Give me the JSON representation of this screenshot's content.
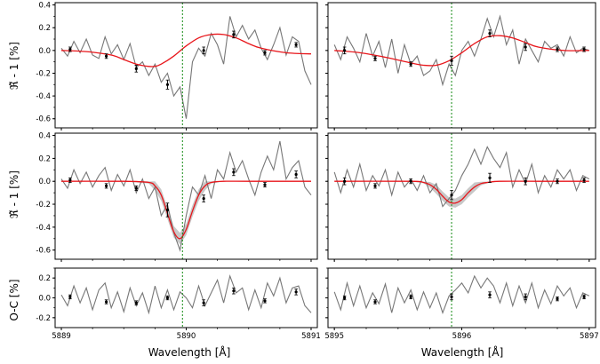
{
  "figure": {
    "ylabel_top": "ℜ̃ - 1 [%]",
    "ylabel_mid": "ℜ̃ - 1 [%]",
    "ylabel_bottom": "O-C [%]",
    "xlabel_left": "Wavelength [Å]",
    "xlabel_right": "Wavelength [Å]"
  },
  "colors": {
    "raw": "#777777",
    "model": "#e8161b",
    "band": "#b5b5b5",
    "line_center": "#128a12",
    "points": "#000000"
  },
  "chart_data": [
    {
      "id": "top-left",
      "type": "line",
      "xlim": [
        5888.95,
        5891.05
      ],
      "ylim": [
        -0.68,
        0.42
      ],
      "xticks": [
        5889,
        5890,
        5891
      ],
      "show_xtick_labels": false,
      "yticks": [
        0.4,
        0.2,
        0.0,
        -0.2,
        -0.4,
        -0.6
      ],
      "ytick_labels": [
        "0.4",
        "0.2",
        "0.0",
        "-0.2",
        "-0.4",
        "-0.6"
      ],
      "line_center": 5889.97,
      "raw_spectrum": {
        "x": [
          5889.0,
          5889.05,
          5889.1,
          5889.15,
          5889.2,
          5889.25,
          5889.3,
          5889.35,
          5889.4,
          5889.45,
          5889.5,
          5889.55,
          5889.6,
          5889.65,
          5889.7,
          5889.75,
          5889.8,
          5889.85,
          5889.9,
          5889.95,
          5890.0,
          5890.05,
          5890.1,
          5890.15,
          5890.2,
          5890.25,
          5890.3,
          5890.35,
          5890.4,
          5890.45,
          5890.5,
          5890.55,
          5890.6,
          5890.65,
          5890.7,
          5890.75,
          5890.8,
          5890.85,
          5890.9,
          5890.95,
          5891.0
        ],
        "y": [
          0.02,
          -0.05,
          0.08,
          -0.02,
          0.1,
          -0.04,
          -0.07,
          0.12,
          -0.03,
          0.05,
          -0.08,
          0.06,
          -0.15,
          -0.1,
          -0.22,
          -0.12,
          -0.28,
          -0.2,
          -0.4,
          -0.32,
          -0.6,
          -0.1,
          0.02,
          -0.05,
          0.15,
          0.05,
          -0.12,
          0.3,
          0.12,
          0.22,
          0.1,
          0.18,
          0.02,
          -0.08,
          0.05,
          0.2,
          -0.04,
          0.12,
          0.08,
          -0.18,
          -0.3
        ]
      },
      "binned_points": {
        "x": [
          5889.07,
          5889.36,
          5889.6,
          5889.85,
          5890.14,
          5890.38,
          5890.63,
          5890.88
        ],
        "y": [
          0.01,
          -0.05,
          -0.16,
          -0.3,
          0.0,
          0.14,
          -0.02,
          0.05
        ],
        "yerr": [
          0.02,
          0.02,
          0.03,
          0.04,
          0.03,
          0.03,
          0.02,
          0.02
        ]
      },
      "model": {
        "x": [
          5889.0,
          5889.2,
          5889.4,
          5889.5,
          5889.6,
          5889.7,
          5889.75,
          5889.8,
          5889.9,
          5890.0,
          5890.1,
          5890.2,
          5890.3,
          5890.4,
          5890.5,
          5890.6,
          5890.8,
          5891.0
        ],
        "y": [
          0.0,
          -0.01,
          -0.04,
          -0.08,
          -0.12,
          -0.14,
          -0.14,
          -0.12,
          -0.05,
          0.04,
          0.11,
          0.14,
          0.14,
          0.11,
          0.06,
          0.02,
          -0.02,
          -0.03
        ]
      }
    },
    {
      "id": "top-right",
      "type": "line",
      "xlim": [
        5894.95,
        5897.05
      ],
      "ylim": [
        -0.68,
        0.42
      ],
      "xticks": [
        5895,
        5896,
        5897
      ],
      "show_xtick_labels": false,
      "yticks": [
        0.4,
        0.2,
        0.0,
        -0.2,
        -0.4,
        -0.6
      ],
      "ytick_labels": [],
      "line_center": 5895.92,
      "raw_spectrum": {
        "x": [
          5895.0,
          5895.05,
          5895.1,
          5895.15,
          5895.2,
          5895.25,
          5895.3,
          5895.35,
          5895.4,
          5895.45,
          5895.5,
          5895.55,
          5895.6,
          5895.65,
          5895.7,
          5895.75,
          5895.8,
          5895.85,
          5895.9,
          5895.95,
          5896.0,
          5896.05,
          5896.1,
          5896.15,
          5896.2,
          5896.25,
          5896.3,
          5896.35,
          5896.4,
          5896.45,
          5896.5,
          5896.55,
          5896.6,
          5896.65,
          5896.7,
          5896.75,
          5896.8,
          5896.85,
          5896.9,
          5896.95,
          5897.0
        ],
        "y": [
          0.05,
          -0.08,
          0.12,
          0.02,
          -0.1,
          0.15,
          -0.05,
          0.08,
          -0.15,
          0.1,
          -0.2,
          0.05,
          -0.12,
          -0.05,
          -0.22,
          -0.18,
          -0.08,
          -0.3,
          -0.12,
          -0.22,
          0.0,
          0.08,
          -0.05,
          0.1,
          0.28,
          0.12,
          0.3,
          0.05,
          0.18,
          -0.12,
          0.1,
          0.0,
          -0.1,
          0.08,
          0.02,
          0.05,
          -0.05,
          0.12,
          -0.02,
          0.02,
          0.0
        ]
      },
      "binned_points": {
        "x": [
          5895.08,
          5895.32,
          5895.6,
          5895.92,
          5896.22,
          5896.5,
          5896.75,
          5896.96
        ],
        "y": [
          0.0,
          -0.07,
          -0.12,
          -0.09,
          0.15,
          0.03,
          0.01,
          0.01
        ],
        "yerr": [
          0.03,
          0.02,
          0.02,
          0.04,
          0.03,
          0.03,
          0.02,
          0.02
        ]
      },
      "model": {
        "x": [
          5895.0,
          5895.2,
          5895.4,
          5895.6,
          5895.7,
          5895.8,
          5895.9,
          5896.0,
          5896.1,
          5896.2,
          5896.3,
          5896.4,
          5896.5,
          5896.6,
          5896.8,
          5897.0
        ],
        "y": [
          0.0,
          -0.02,
          -0.06,
          -0.11,
          -0.13,
          -0.13,
          -0.09,
          -0.02,
          0.06,
          0.12,
          0.13,
          0.11,
          0.07,
          0.03,
          0.0,
          0.0
        ]
      }
    },
    {
      "id": "mid-left",
      "type": "line",
      "xlim": [
        5888.95,
        5891.05
      ],
      "ylim": [
        -0.68,
        0.42
      ],
      "xticks": [
        5889,
        5890,
        5891
      ],
      "show_xtick_labels": false,
      "yticks": [
        0.4,
        0.2,
        0.0,
        -0.2,
        -0.4,
        -0.6
      ],
      "ytick_labels": [
        "0.4",
        "0.2",
        "0.0",
        "-0.2",
        "-0.4",
        "-0.6"
      ],
      "line_center": 5889.97,
      "raw_spectrum": {
        "x": [
          5889.0,
          5889.05,
          5889.1,
          5889.15,
          5889.2,
          5889.25,
          5889.3,
          5889.35,
          5889.4,
          5889.45,
          5889.5,
          5889.55,
          5889.6,
          5889.65,
          5889.7,
          5889.75,
          5889.8,
          5889.85,
          5889.9,
          5889.95,
          5890.0,
          5890.05,
          5890.1,
          5890.15,
          5890.2,
          5890.25,
          5890.3,
          5890.35,
          5890.4,
          5890.45,
          5890.5,
          5890.55,
          5890.6,
          5890.65,
          5890.7,
          5890.75,
          5890.8,
          5890.85,
          5890.9,
          5890.95,
          5891.0
        ],
        "y": [
          0.02,
          -0.06,
          0.1,
          -0.02,
          0.08,
          -0.05,
          0.05,
          0.12,
          -0.08,
          0.06,
          -0.04,
          0.1,
          -0.1,
          0.02,
          -0.15,
          -0.05,
          -0.3,
          -0.2,
          -0.45,
          -0.6,
          -0.3,
          -0.05,
          -0.12,
          0.05,
          -0.15,
          0.1,
          0.02,
          0.25,
          0.08,
          0.18,
          0.02,
          -0.12,
          0.08,
          0.22,
          0.1,
          0.35,
          0.02,
          0.12,
          0.18,
          -0.05,
          -0.12
        ]
      },
      "binned_points": {
        "x": [
          5889.07,
          5889.36,
          5889.6,
          5889.85,
          5890.14,
          5890.38,
          5890.63,
          5890.88
        ],
        "y": [
          0.01,
          -0.04,
          -0.06,
          -0.25,
          -0.15,
          0.08,
          -0.03,
          0.06
        ],
        "yerr": [
          0.02,
          0.02,
          0.02,
          0.06,
          0.03,
          0.03,
          0.02,
          0.03
        ]
      },
      "model": {
        "x": [
          5889.0,
          5889.5,
          5889.7,
          5889.75,
          5889.8,
          5889.85,
          5889.9,
          5889.95,
          5890.0,
          5890.05,
          5890.1,
          5890.15,
          5890.2,
          5890.3,
          5890.5,
          5891.0
        ],
        "y": [
          0.0,
          0.0,
          -0.01,
          -0.04,
          -0.12,
          -0.28,
          -0.44,
          -0.5,
          -0.42,
          -0.26,
          -0.12,
          -0.04,
          -0.01,
          0.0,
          0.0,
          0.0
        ]
      },
      "model_band_halfwidth": 0.05
    },
    {
      "id": "mid-right",
      "type": "line",
      "xlim": [
        5894.95,
        5897.05
      ],
      "ylim": [
        -0.68,
        0.42
      ],
      "xticks": [
        5895,
        5896,
        5897
      ],
      "show_xtick_labels": false,
      "yticks": [
        0.4,
        0.2,
        0.0,
        -0.2,
        -0.4,
        -0.6
      ],
      "ytick_labels": [],
      "line_center": 5895.92,
      "raw_spectrum": {
        "x": [
          5895.0,
          5895.05,
          5895.1,
          5895.15,
          5895.2,
          5895.25,
          5895.3,
          5895.35,
          5895.4,
          5895.45,
          5895.5,
          5895.55,
          5895.6,
          5895.65,
          5895.7,
          5895.75,
          5895.8,
          5895.85,
          5895.9,
          5895.95,
          5896.0,
          5896.05,
          5896.1,
          5896.15,
          5896.2,
          5896.25,
          5896.3,
          5896.35,
          5896.4,
          5896.45,
          5896.5,
          5896.55,
          5896.6,
          5896.65,
          5896.7,
          5896.75,
          5896.8,
          5896.85,
          5896.9,
          5896.95,
          5897.0
        ],
        "y": [
          0.08,
          -0.1,
          0.1,
          -0.05,
          0.15,
          -0.08,
          0.05,
          -0.04,
          0.1,
          -0.12,
          0.08,
          -0.05,
          0.02,
          -0.08,
          0.05,
          -0.1,
          -0.02,
          -0.22,
          -0.15,
          -0.08,
          0.05,
          0.15,
          0.28,
          0.15,
          0.3,
          0.2,
          0.12,
          0.25,
          -0.05,
          0.1,
          -0.02,
          0.15,
          -0.1,
          0.05,
          -0.05,
          0.1,
          0.02,
          0.1,
          -0.08,
          0.05,
          0.02
        ]
      },
      "binned_points": {
        "x": [
          5895.08,
          5895.32,
          5895.6,
          5895.92,
          5896.22,
          5896.5,
          5896.75,
          5896.96
        ],
        "y": [
          0.0,
          -0.04,
          0.0,
          -0.12,
          0.03,
          0.0,
          0.0,
          0.01
        ],
        "yerr": [
          0.03,
          0.02,
          0.02,
          0.04,
          0.04,
          0.03,
          0.02,
          0.02
        ]
      },
      "model": {
        "x": [
          5895.0,
          5895.6,
          5895.7,
          5895.75,
          5895.8,
          5895.85,
          5895.9,
          5895.95,
          5896.0,
          5896.05,
          5896.1,
          5896.15,
          5896.2,
          5896.3,
          5896.6,
          5897.0
        ],
        "y": [
          0.0,
          0.0,
          -0.01,
          -0.03,
          -0.07,
          -0.13,
          -0.18,
          -0.19,
          -0.16,
          -0.1,
          -0.05,
          -0.02,
          -0.01,
          0.0,
          0.0,
          0.0
        ]
      },
      "model_band_halfwidth": 0.04
    },
    {
      "id": "bottom-left",
      "type": "line",
      "xlim": [
        5888.95,
        5891.05
      ],
      "ylim": [
        -0.3,
        0.3
      ],
      "xticks": [
        5889,
        5890,
        5891
      ],
      "show_xtick_labels": true,
      "xtick_labels": [
        "5889",
        "5890",
        "5891"
      ],
      "yticks": [
        0.2,
        0.0,
        -0.2
      ],
      "ytick_labels": [
        "0.2",
        "0.0",
        "-0.2"
      ],
      "line_center": 5889.97,
      "raw_spectrum": {
        "x": [
          5889.0,
          5889.05,
          5889.1,
          5889.15,
          5889.2,
          5889.25,
          5889.3,
          5889.35,
          5889.4,
          5889.45,
          5889.5,
          5889.55,
          5889.6,
          5889.65,
          5889.7,
          5889.75,
          5889.8,
          5889.85,
          5889.9,
          5889.95,
          5890.0,
          5890.05,
          5890.1,
          5890.15,
          5890.2,
          5890.25,
          5890.3,
          5890.35,
          5890.4,
          5890.45,
          5890.5,
          5890.55,
          5890.6,
          5890.65,
          5890.7,
          5890.75,
          5890.8,
          5890.85,
          5890.9,
          5890.95,
          5891.0
        ],
        "y": [
          0.03,
          -0.08,
          0.12,
          -0.05,
          0.1,
          -0.12,
          0.08,
          0.15,
          -0.1,
          0.06,
          -0.14,
          0.1,
          -0.08,
          0.05,
          -0.15,
          0.12,
          -0.1,
          0.08,
          -0.12,
          0.06,
          0.0,
          -0.1,
          0.12,
          -0.08,
          0.05,
          0.18,
          -0.05,
          0.22,
          0.05,
          0.1,
          -0.12,
          0.08,
          -0.1,
          0.15,
          0.02,
          0.2,
          -0.05,
          0.1,
          0.12,
          -0.08,
          -0.15
        ]
      },
      "binned_points": {
        "x": [
          5889.07,
          5889.36,
          5889.6,
          5889.85,
          5890.14,
          5890.38,
          5890.63,
          5890.88
        ],
        "y": [
          0.01,
          -0.04,
          -0.05,
          0.0,
          -0.05,
          0.07,
          -0.03,
          0.06
        ],
        "yerr": [
          0.02,
          0.02,
          0.02,
          0.02,
          0.03,
          0.03,
          0.02,
          0.03
        ]
      }
    },
    {
      "id": "bottom-right",
      "type": "line",
      "xlim": [
        5894.95,
        5897.05
      ],
      "ylim": [
        -0.3,
        0.3
      ],
      "xticks": [
        5895,
        5896,
        5897
      ],
      "show_xtick_labels": true,
      "xtick_labels": [
        "5895",
        "5896",
        "5897"
      ],
      "yticks": [
        0.2,
        0.0,
        -0.2
      ],
      "ytick_labels": [],
      "line_center": 5895.92,
      "raw_spectrum": {
        "x": [
          5895.0,
          5895.05,
          5895.1,
          5895.15,
          5895.2,
          5895.25,
          5895.3,
          5895.35,
          5895.4,
          5895.45,
          5895.5,
          5895.55,
          5895.6,
          5895.65,
          5895.7,
          5895.75,
          5895.8,
          5895.85,
          5895.9,
          5895.95,
          5896.0,
          5896.05,
          5896.1,
          5896.15,
          5896.2,
          5896.25,
          5896.3,
          5896.35,
          5896.4,
          5896.45,
          5896.5,
          5896.55,
          5896.6,
          5896.65,
          5896.7,
          5896.75,
          5896.8,
          5896.85,
          5896.9,
          5896.95,
          5897.0
        ],
        "y": [
          0.06,
          -0.12,
          0.15,
          -0.08,
          0.12,
          -0.1,
          0.05,
          -0.06,
          0.14,
          -0.15,
          0.1,
          -0.05,
          0.08,
          -0.12,
          0.06,
          -0.1,
          0.05,
          -0.15,
          0.02,
          0.08,
          0.15,
          0.05,
          0.22,
          0.1,
          0.2,
          0.12,
          -0.05,
          0.15,
          -0.08,
          0.12,
          -0.05,
          0.15,
          -0.1,
          0.08,
          -0.06,
          0.12,
          0.02,
          0.1,
          -0.1,
          0.05,
          0.02
        ]
      },
      "binned_points": {
        "x": [
          5895.08,
          5895.32,
          5895.6,
          5895.92,
          5896.22,
          5896.5,
          5896.75,
          5896.96
        ],
        "y": [
          0.0,
          -0.04,
          0.01,
          0.01,
          0.03,
          0.01,
          -0.01,
          0.01
        ],
        "yerr": [
          0.02,
          0.02,
          0.02,
          0.03,
          0.03,
          0.03,
          0.02,
          0.02
        ]
      }
    }
  ]
}
